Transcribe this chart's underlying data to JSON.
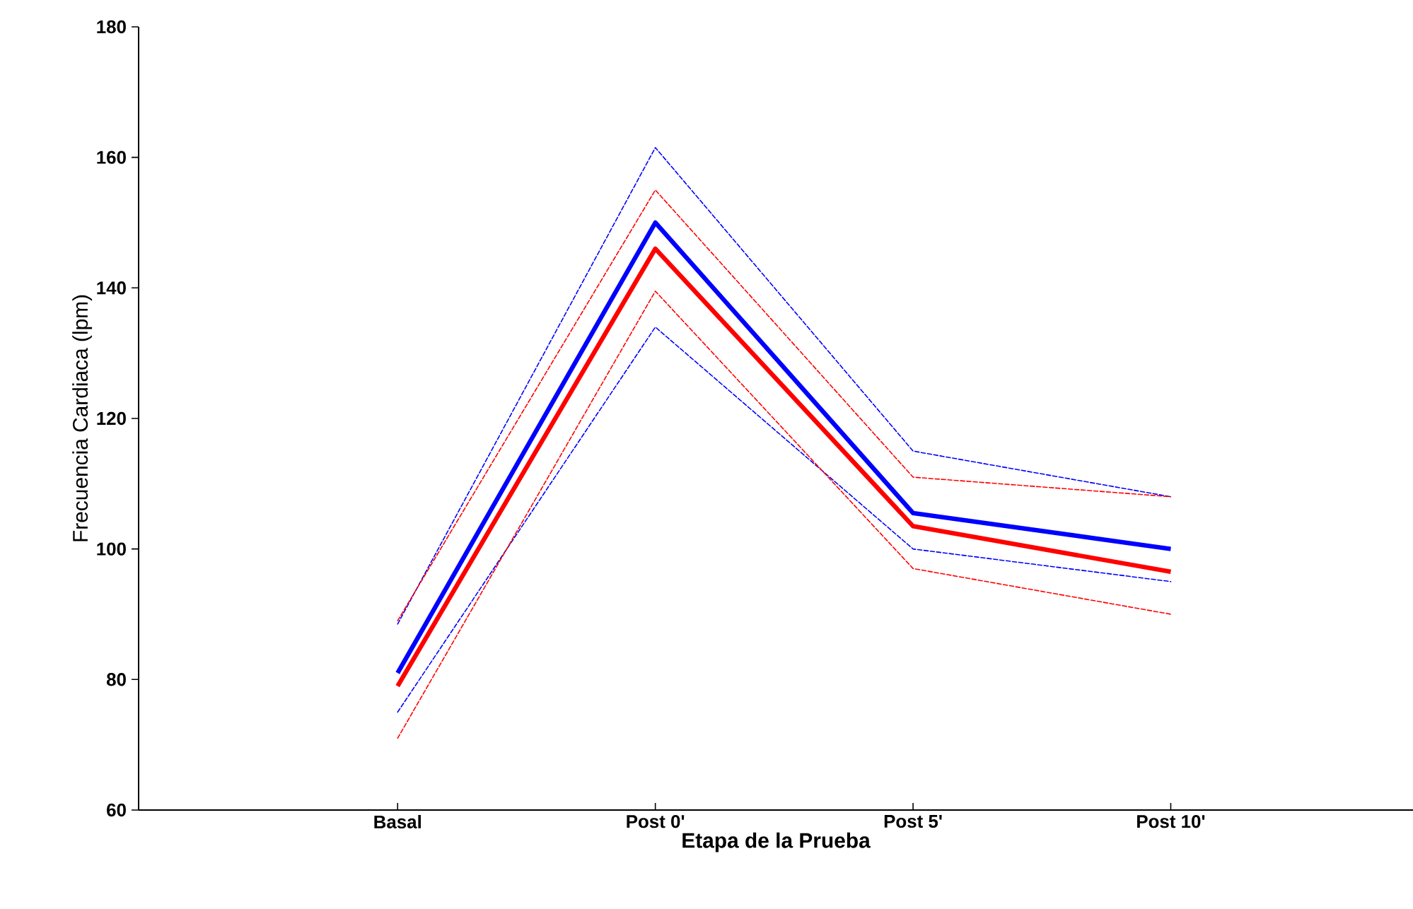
{
  "chart_data": {
    "type": "line",
    "xlabel": "Etapa de la Prueba",
    "ylabel": "Frecuencia Cardiaca (lpm)",
    "categories": [
      "Basal",
      "Post 0'",
      "Post 5'",
      "Post 10'"
    ],
    "series": [
      {
        "color": "#0000ff",
        "values": [
          88.5,
          161.5,
          115,
          108
        ],
        "line_style": "dashed"
      },
      {
        "color": "#0000ff",
        "values": [
          75,
          134,
          100,
          95
        ],
        "line_style": "dashed"
      },
      {
        "color": "#ff0000",
        "values": [
          89,
          155,
          111,
          108
        ],
        "line_style": "dashed"
      },
      {
        "color": "#ff0000",
        "values": [
          71,
          139.5,
          97,
          90
        ],
        "line_style": "dashed"
      },
      {
        "color": "#0000ff",
        "values": [
          81,
          150,
          105.5,
          100
        ],
        "line_style": "solid"
      },
      {
        "color": "#ff0000",
        "values": [
          79,
          146,
          103.5,
          96.5
        ],
        "line_style": "solid"
      }
    ],
    "ylim": [
      60,
      180
    ],
    "yticks": [
      60,
      80,
      100,
      120,
      140,
      160,
      180
    ],
    "grid": false,
    "marker": "none"
  }
}
